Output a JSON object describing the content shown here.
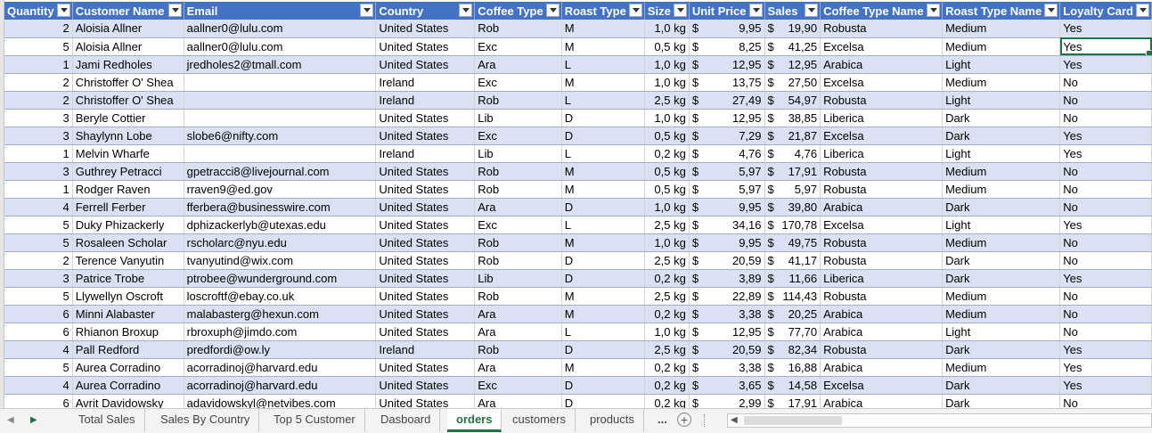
{
  "columns": [
    {
      "key": "qty",
      "label": "Quantity",
      "width": 76,
      "align": "num"
    },
    {
      "key": "name",
      "label": "Customer Name",
      "width": 125
    },
    {
      "key": "email",
      "label": "Email",
      "width": 219
    },
    {
      "key": "country",
      "label": "Country",
      "width": 113
    },
    {
      "key": "coffee",
      "label": "Coffee Type",
      "width": 96
    },
    {
      "key": "roast",
      "label": "Roast Type",
      "width": 89
    },
    {
      "key": "size",
      "label": "Size",
      "width": 47,
      "align": "num"
    },
    {
      "key": "price",
      "label": "Unit Price",
      "width": 82,
      "align": "cur"
    },
    {
      "key": "sales",
      "label": "Sales",
      "width": 63,
      "align": "cur"
    },
    {
      "key": "coffee_name",
      "label": "Coffee Type Name",
      "width": 137
    },
    {
      "key": "roast_name",
      "label": "Roast Type Name",
      "width": 128
    },
    {
      "key": "loyalty",
      "label": "Loyalty Card",
      "width": 100
    }
  ],
  "rows": [
    {
      "qty": "2",
      "name": "Aloisia Allner",
      "email": "aallner0@lulu.com",
      "country": "United States",
      "coffee": "Rob",
      "roast": "M",
      "size": "1,0 kg",
      "price": "9,95",
      "sales": "19,90",
      "coffee_name": "Robusta",
      "roast_name": "Medium",
      "loyalty": "Yes"
    },
    {
      "qty": "5",
      "name": "Aloisia Allner",
      "email": "aallner0@lulu.com",
      "country": "United States",
      "coffee": "Exc",
      "roast": "M",
      "size": "0,5 kg",
      "price": "8,25",
      "sales": "41,25",
      "coffee_name": "Excelsa",
      "roast_name": "Medium",
      "loyalty": "Yes"
    },
    {
      "qty": "1",
      "name": "Jami Redholes",
      "email": "jredholes2@tmall.com",
      "country": "United States",
      "coffee": "Ara",
      "roast": "L",
      "size": "1,0 kg",
      "price": "12,95",
      "sales": "12,95",
      "coffee_name": "Arabica",
      "roast_name": "Light",
      "loyalty": "Yes"
    },
    {
      "qty": "2",
      "name": "Christoffer O' Shea",
      "email": "",
      "country": "Ireland",
      "coffee": "Exc",
      "roast": "M",
      "size": "1,0 kg",
      "price": "13,75",
      "sales": "27,50",
      "coffee_name": "Excelsa",
      "roast_name": "Medium",
      "loyalty": "No"
    },
    {
      "qty": "2",
      "name": "Christoffer O' Shea",
      "email": "",
      "country": "Ireland",
      "coffee": "Rob",
      "roast": "L",
      "size": "2,5 kg",
      "price": "27,49",
      "sales": "54,97",
      "coffee_name": "Robusta",
      "roast_name": "Light",
      "loyalty": "No"
    },
    {
      "qty": "3",
      "name": "Beryle Cottier",
      "email": "",
      "country": "United States",
      "coffee": "Lib",
      "roast": "D",
      "size": "1,0 kg",
      "price": "12,95",
      "sales": "38,85",
      "coffee_name": "Liberica",
      "roast_name": "Dark",
      "loyalty": "No"
    },
    {
      "qty": "3",
      "name": "Shaylynn Lobe",
      "email": "slobe6@nifty.com",
      "country": "United States",
      "coffee": "Exc",
      "roast": "D",
      "size": "0,5 kg",
      "price": "7,29",
      "sales": "21,87",
      "coffee_name": "Excelsa",
      "roast_name": "Dark",
      "loyalty": "Yes"
    },
    {
      "qty": "1",
      "name": "Melvin Wharfe",
      "email": "",
      "country": "Ireland",
      "coffee": "Lib",
      "roast": "L",
      "size": "0,2 kg",
      "price": "4,76",
      "sales": "4,76",
      "coffee_name": "Liberica",
      "roast_name": "Light",
      "loyalty": "Yes"
    },
    {
      "qty": "3",
      "name": "Guthrey Petracci",
      "email": "gpetracci8@livejournal.com",
      "country": "United States",
      "coffee": "Rob",
      "roast": "M",
      "size": "0,5 kg",
      "price": "5,97",
      "sales": "17,91",
      "coffee_name": "Robusta",
      "roast_name": "Medium",
      "loyalty": "No"
    },
    {
      "qty": "1",
      "name": "Rodger Raven",
      "email": "rraven9@ed.gov",
      "country": "United States",
      "coffee": "Rob",
      "roast": "M",
      "size": "0,5 kg",
      "price": "5,97",
      "sales": "5,97",
      "coffee_name": "Robusta",
      "roast_name": "Medium",
      "loyalty": "No"
    },
    {
      "qty": "4",
      "name": "Ferrell Ferber",
      "email": "fferbera@businesswire.com",
      "country": "United States",
      "coffee": "Ara",
      "roast": "D",
      "size": "1,0 kg",
      "price": "9,95",
      "sales": "39,80",
      "coffee_name": "Arabica",
      "roast_name": "Dark",
      "loyalty": "No"
    },
    {
      "qty": "5",
      "name": "Duky Phizackerly",
      "email": "dphizackerlyb@utexas.edu",
      "country": "United States",
      "coffee": "Exc",
      "roast": "L",
      "size": "2,5 kg",
      "price": "34,16",
      "sales": "170,78",
      "coffee_name": "Excelsa",
      "roast_name": "Light",
      "loyalty": "Yes"
    },
    {
      "qty": "5",
      "name": "Rosaleen Scholar",
      "email": "rscholarc@nyu.edu",
      "country": "United States",
      "coffee": "Rob",
      "roast": "M",
      "size": "1,0 kg",
      "price": "9,95",
      "sales": "49,75",
      "coffee_name": "Robusta",
      "roast_name": "Medium",
      "loyalty": "No"
    },
    {
      "qty": "2",
      "name": "Terence Vanyutin",
      "email": "tvanyutind@wix.com",
      "country": "United States",
      "coffee": "Rob",
      "roast": "D",
      "size": "2,5 kg",
      "price": "20,59",
      "sales": "41,17",
      "coffee_name": "Robusta",
      "roast_name": "Dark",
      "loyalty": "No"
    },
    {
      "qty": "3",
      "name": "Patrice Trobe",
      "email": "ptrobee@wunderground.com",
      "country": "United States",
      "coffee": "Lib",
      "roast": "D",
      "size": "0,2 kg",
      "price": "3,89",
      "sales": "11,66",
      "coffee_name": "Liberica",
      "roast_name": "Dark",
      "loyalty": "Yes"
    },
    {
      "qty": "5",
      "name": "Llywellyn Oscroft",
      "email": "loscroftf@ebay.co.uk",
      "country": "United States",
      "coffee": "Rob",
      "roast": "M",
      "size": "2,5 kg",
      "price": "22,89",
      "sales": "114,43",
      "coffee_name": "Robusta",
      "roast_name": "Medium",
      "loyalty": "No"
    },
    {
      "qty": "6",
      "name": "Minni Alabaster",
      "email": "malabasterg@hexun.com",
      "country": "United States",
      "coffee": "Ara",
      "roast": "M",
      "size": "0,2 kg",
      "price": "3,38",
      "sales": "20,25",
      "coffee_name": "Arabica",
      "roast_name": "Medium",
      "loyalty": "No"
    },
    {
      "qty": "6",
      "name": "Rhianon Broxup",
      "email": "rbroxuph@jimdo.com",
      "country": "United States",
      "coffee": "Ara",
      "roast": "L",
      "size": "1,0 kg",
      "price": "12,95",
      "sales": "77,70",
      "coffee_name": "Arabica",
      "roast_name": "Light",
      "loyalty": "No"
    },
    {
      "qty": "4",
      "name": "Pall Redford",
      "email": "predfordi@ow.ly",
      "country": "Ireland",
      "coffee": "Rob",
      "roast": "D",
      "size": "2,5 kg",
      "price": "20,59",
      "sales": "82,34",
      "coffee_name": "Robusta",
      "roast_name": "Dark",
      "loyalty": "Yes"
    },
    {
      "qty": "5",
      "name": "Aurea Corradino",
      "email": "acorradinoj@harvard.edu",
      "country": "United States",
      "coffee": "Ara",
      "roast": "M",
      "size": "0,2 kg",
      "price": "3,38",
      "sales": "16,88",
      "coffee_name": "Arabica",
      "roast_name": "Medium",
      "loyalty": "Yes"
    },
    {
      "qty": "4",
      "name": "Aurea Corradino",
      "email": "acorradinoj@harvard.edu",
      "country": "United States",
      "coffee": "Exc",
      "roast": "D",
      "size": "0,2 kg",
      "price": "3,65",
      "sales": "14,58",
      "coffee_name": "Excelsa",
      "roast_name": "Dark",
      "loyalty": "Yes"
    },
    {
      "qty": "6",
      "name": "Avrit Davidowsky",
      "email": "adavidowskyl@netvibes.com",
      "country": "United States",
      "coffee": "Ara",
      "roast": "D",
      "size": "0,2 kg",
      "price": "2,99",
      "sales": "17,91",
      "coffee_name": "Arabica",
      "roast_name": "Dark",
      "loyalty": "No"
    }
  ],
  "currency_symbol": "$",
  "selected_cell": {
    "row": 1,
    "col": "loyalty"
  },
  "tabs": [
    "Total Sales",
    "Sales By Country",
    "Top 5 Customer",
    "Dasboard",
    "orders",
    "customers",
    "products"
  ],
  "active_tab": "orders",
  "tabs_more": "...",
  "add_sheet_symbol": "+",
  "colors": {
    "header_bg": "#4472c4",
    "band": "#d9e1f2",
    "accent": "#217346"
  }
}
